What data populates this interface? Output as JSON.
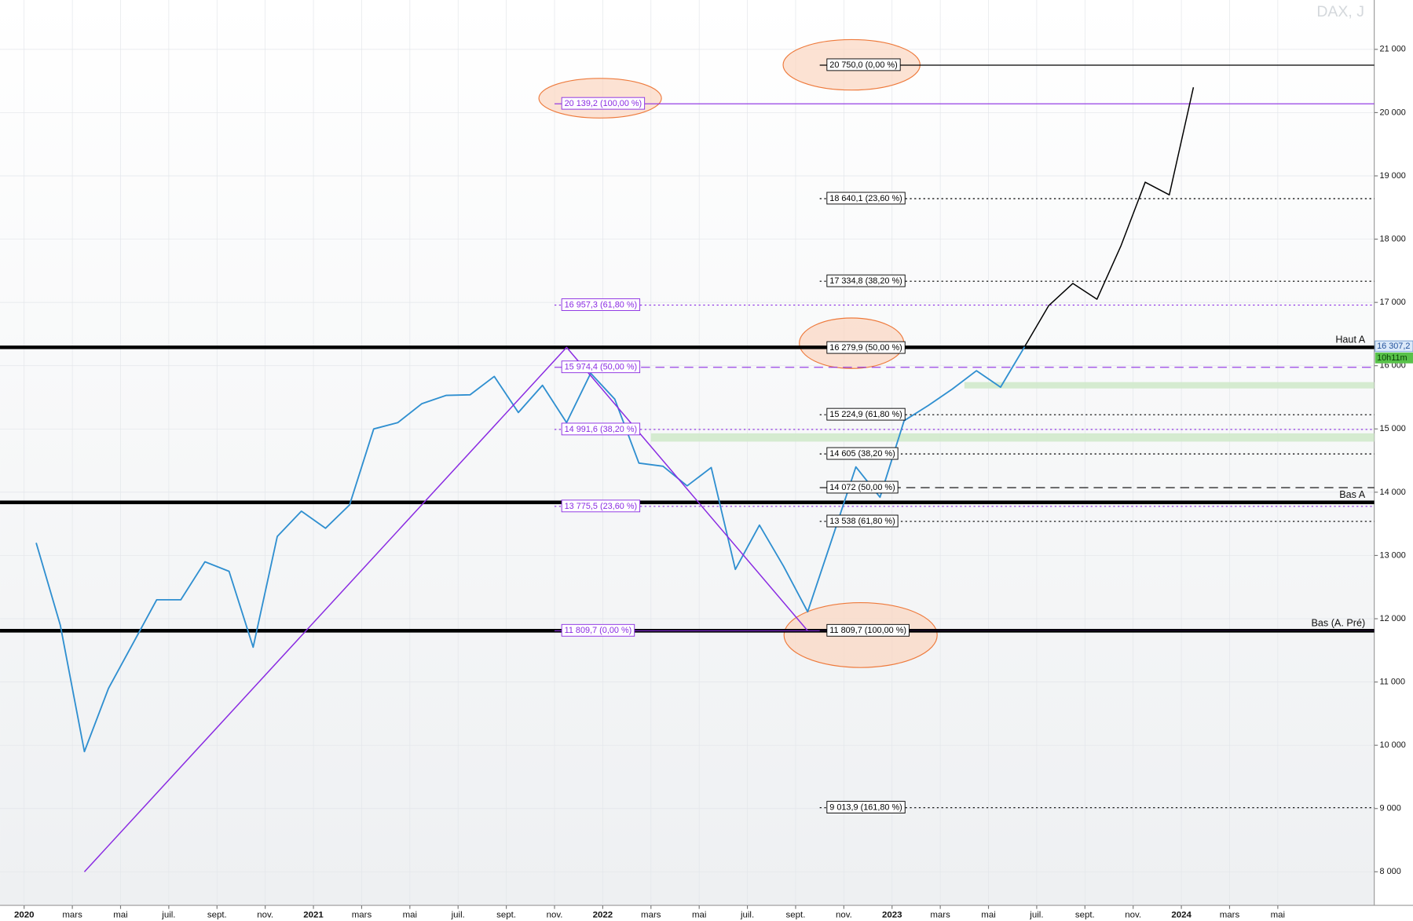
{
  "chart_data": {
    "type": "line",
    "title": "DAX, J",
    "grid": true,
    "xlim": [
      "2019-12",
      "2024-09"
    ],
    "ylim": [
      7470,
      21780
    ],
    "yticks": [
      {
        "value": 21000,
        "label": "21 000"
      },
      {
        "value": 20000,
        "label": "20 000"
      },
      {
        "value": 19000,
        "label": "19 000"
      },
      {
        "value": 18000,
        "label": "18 000"
      },
      {
        "value": 17000,
        "label": "17 000"
      },
      {
        "value": 16000,
        "label": "16 000"
      },
      {
        "value": 15000,
        "label": "15 000"
      },
      {
        "value": 14000,
        "label": "14 000"
      },
      {
        "value": 13000,
        "label": "13 000"
      },
      {
        "value": 12000,
        "label": "12 000"
      },
      {
        "value": 11000,
        "label": "11 000"
      },
      {
        "value": 10000,
        "label": "10 000"
      },
      {
        "value": 9000,
        "label": "9 000"
      },
      {
        "value": 8000,
        "label": "8 000"
      }
    ],
    "xticks": [
      {
        "value": "2020-01",
        "label": "2020"
      },
      {
        "value": "2020-03",
        "label": "mars"
      },
      {
        "value": "2020-05",
        "label": "mai"
      },
      {
        "value": "2020-07",
        "label": "juil."
      },
      {
        "value": "2020-09",
        "label": "sept."
      },
      {
        "value": "2020-11",
        "label": "nov."
      },
      {
        "value": "2021-01",
        "label": "2021"
      },
      {
        "value": "2021-03",
        "label": "mars"
      },
      {
        "value": "2021-05",
        "label": "mai"
      },
      {
        "value": "2021-07",
        "label": "juil."
      },
      {
        "value": "2021-09",
        "label": "sept."
      },
      {
        "value": "2021-11",
        "label": "nov."
      },
      {
        "value": "2022-01",
        "label": "2022"
      },
      {
        "value": "2022-03",
        "label": "mars"
      },
      {
        "value": "2022-05",
        "label": "mai"
      },
      {
        "value": "2022-07",
        "label": "juil."
      },
      {
        "value": "2022-09",
        "label": "sept."
      },
      {
        "value": "2022-11",
        "label": "nov."
      },
      {
        "value": "2023-01",
        "label": "2023"
      },
      {
        "value": "2023-03",
        "label": "mars"
      },
      {
        "value": "2023-05",
        "label": "mai"
      },
      {
        "value": "2023-07",
        "label": "juil."
      },
      {
        "value": "2023-09",
        "label": "sept."
      },
      {
        "value": "2023-11",
        "label": "nov."
      },
      {
        "value": "2024-01",
        "label": "2024"
      },
      {
        "value": "2024-03",
        "label": "mars"
      },
      {
        "value": "2024-05",
        "label": "mai"
      }
    ],
    "series": [
      {
        "color": "#2f8fd0",
        "x": [
          "2020-01",
          "2020-02",
          "2020-03",
          "2020-04",
          "2020-05",
          "2020-06",
          "2020-07",
          "2020-08",
          "2020-09",
          "2020-10",
          "2020-11",
          "2020-12",
          "2021-01",
          "2021-02",
          "2021-03",
          "2021-04",
          "2021-05",
          "2021-06",
          "2021-07",
          "2021-08",
          "2021-09",
          "2021-10",
          "2021-11",
          "2021-12",
          "2022-01",
          "2022-02",
          "2022-03",
          "2022-04",
          "2022-05",
          "2022-06",
          "2022-07",
          "2022-08",
          "2022-09",
          "2022-10",
          "2022-11",
          "2022-12",
          "2023-01",
          "2023-02",
          "2023-03",
          "2023-04",
          "2023-05",
          "2023-06"
        ],
        "values": [
          13200,
          11900,
          9900,
          10900,
          11600,
          12300,
          12300,
          12900,
          12750,
          11550,
          13300,
          13700,
          13430,
          13800,
          15000,
          15100,
          15400,
          15530,
          15540,
          15830,
          15260,
          15690,
          15100,
          15880,
          15470,
          14460,
          14410,
          14100,
          14390,
          12780,
          13480,
          12830,
          12110,
          13250,
          14400,
          13920,
          15130,
          15370,
          15630,
          15920,
          15660,
          16300
        ]
      },
      {
        "color": "#000000",
        "x": [
          "2023-06",
          "2023-07",
          "2023-08",
          "2023-09",
          "2023-10",
          "2023-11",
          "2023-12",
          "2024-01"
        ],
        "values": [
          16300,
          16950,
          17300,
          17050,
          17900,
          18900,
          18700,
          20400
        ]
      },
      {
        "color": "#8a2be2",
        "x": [
          "2020-03",
          "2021-11",
          "2022-09"
        ],
        "values": [
          8000,
          16290,
          11810
        ]
      }
    ],
    "key_levels": [
      {
        "value": 16290,
        "label": "Haut A"
      },
      {
        "value": 13840,
        "label": "Bas A"
      },
      {
        "value": 11810,
        "label": "Bas (A. Pré)"
      }
    ],
    "fib_purple": {
      "color": "#8a2be2",
      "start": "2021-11",
      "levels": [
        {
          "value": 20139.2,
          "label": "20 139,2 (100,00 %)",
          "style": "solid"
        },
        {
          "value": 16957.3,
          "label": "16 957,3 (61,80 %)",
          "style": "dotted"
        },
        {
          "value": 15974.4,
          "label": "15 974,4 (50,00 %)",
          "style": "dashed"
        },
        {
          "value": 14991.6,
          "label": "14 991,6 (38,20 %)",
          "style": "dotted"
        },
        {
          "value": 13775.5,
          "label": "13 775,5 (23,60 %)",
          "style": "dotted"
        },
        {
          "value": 11809.7,
          "label": "11 809,7 (0,00 %)",
          "style": "solid"
        }
      ]
    },
    "fib_black": {
      "color": "#000000",
      "start": "2022-10",
      "levels": [
        {
          "value": 20750,
          "label": "20 750,0 (0,00 %)",
          "style": "solid"
        },
        {
          "value": 18640.1,
          "label": "18 640,1 (23,60 %)",
          "style": "dotted"
        },
        {
          "value": 17334.8,
          "label": "17 334,8 (38,20 %)",
          "style": "dotted"
        },
        {
          "value": 16279.9,
          "label": "16 279,9 (50,00 %)",
          "style": "solid"
        },
        {
          "value": 15224.9,
          "label": "15 224,9 (61,80 %)",
          "style": "dotted"
        },
        {
          "value": 14605,
          "label": "14 605 (38,20 %)",
          "style": "dotted"
        },
        {
          "value": 14072,
          "label": "14 072 (50,00 %)",
          "style": "dashed"
        },
        {
          "value": 13538,
          "label": "13 538 (61,80 %)",
          "style": "dotted"
        },
        {
          "value": 11809.7,
          "label": "11 809,7 (100,00 %)",
          "style": "solid"
        },
        {
          "value": 9013.9,
          "label": "9 013,9 (161,80 %)",
          "style": "dotted"
        }
      ]
    },
    "zones": [
      {
        "from": 15640,
        "to": 15740,
        "start": "2023-04"
      },
      {
        "from": 14800,
        "to": 14930,
        "start": "2022-03"
      }
    ],
    "last_price": {
      "value": 16307.2,
      "label": "16 307,2"
    },
    "countdown": "10h11m"
  }
}
